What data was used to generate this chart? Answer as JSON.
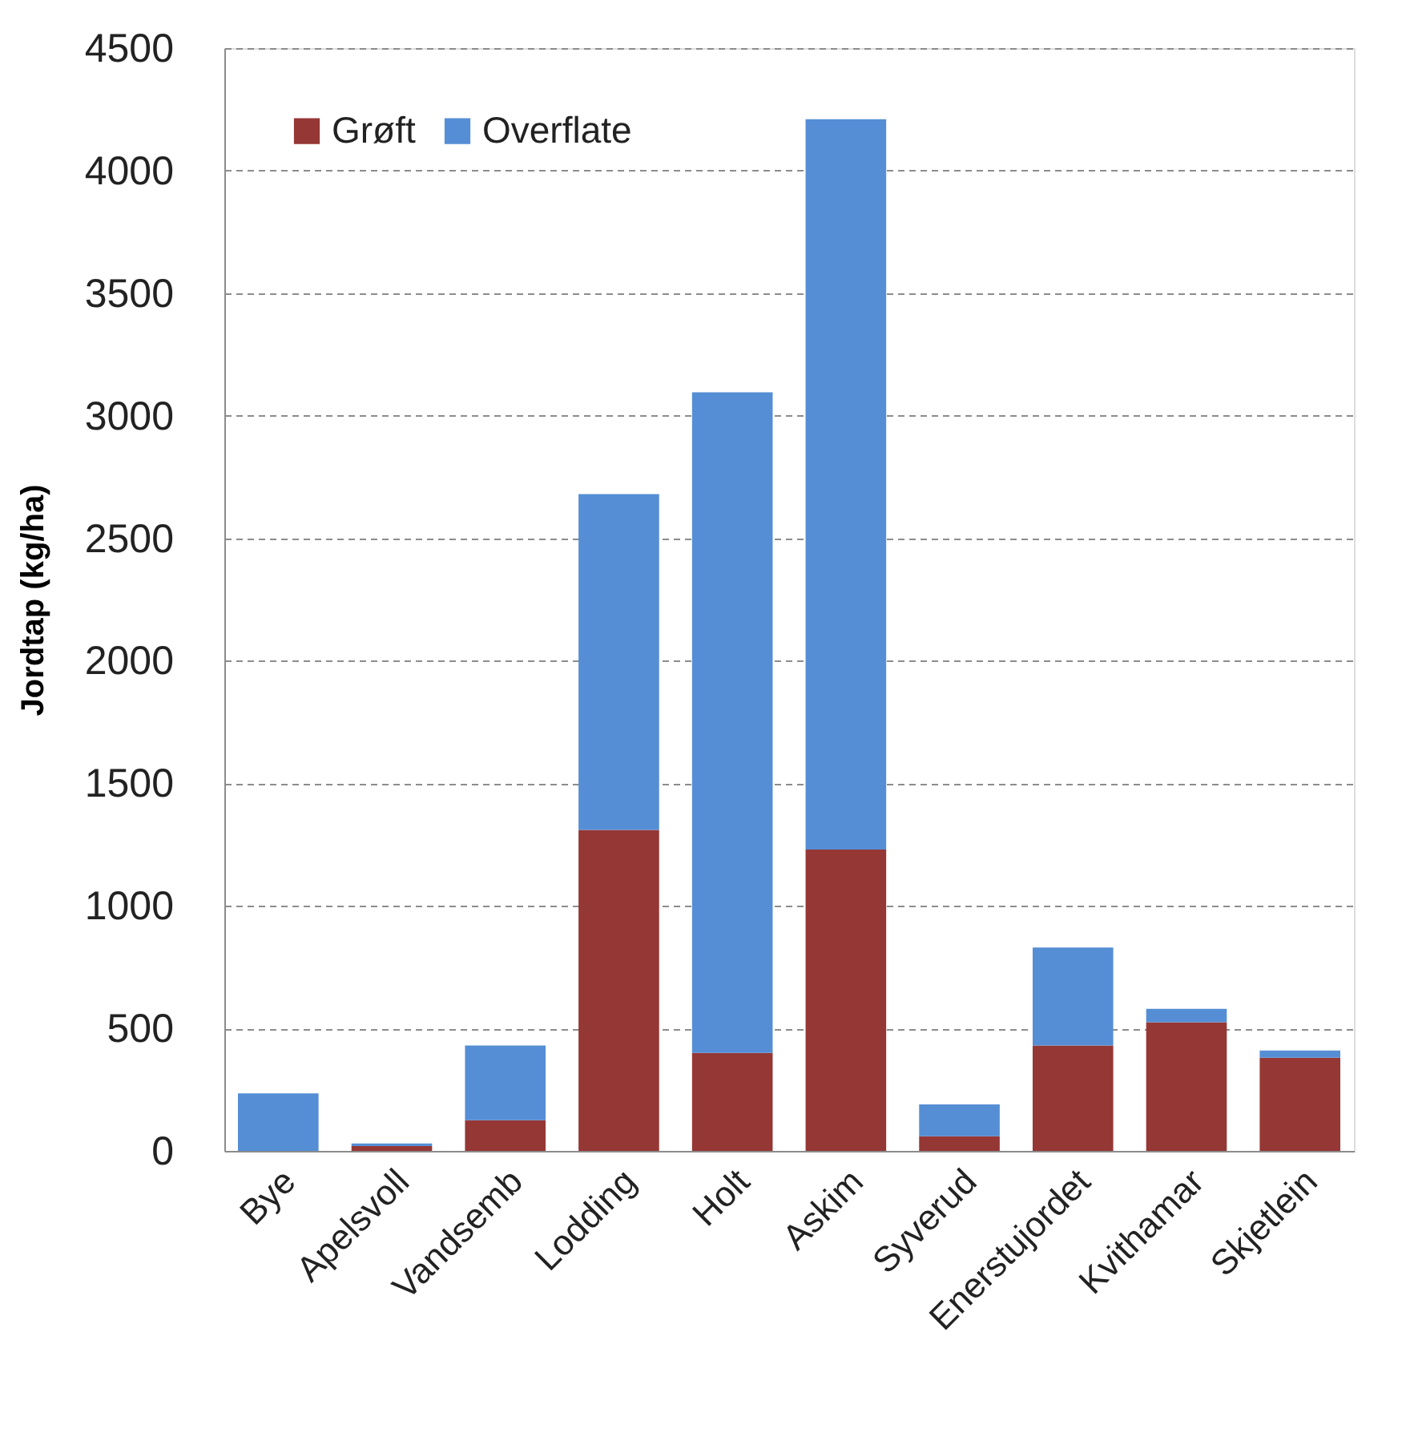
{
  "chart_data": {
    "type": "bar",
    "ylabel": "Jordtap (kg/ha)",
    "categories": [
      "Bye",
      "Apelsvoll",
      "Vandsemb",
      "Lodding",
      "Holt",
      "Askim",
      "Syverud",
      "Enerstujordet",
      "Kvithamar",
      "Skjetlein"
    ],
    "series": [
      {
        "name": "Grøft",
        "color": "#953735",
        "values": [
          0,
          20,
          125,
          1310,
          400,
          1230,
          60,
          430,
          525,
          380
        ]
      },
      {
        "name": "Overflate",
        "color": "#558ed5",
        "values": [
          235,
          10,
          305,
          1370,
          2695,
          2980,
          130,
          400,
          55,
          30
        ]
      }
    ],
    "stacked": true,
    "ylim": [
      0,
      4500
    ],
    "yticks": [
      0,
      500,
      1000,
      1500,
      2000,
      2500,
      3000,
      3500,
      4000,
      4500
    ],
    "grid": "y",
    "legend": "top left"
  }
}
